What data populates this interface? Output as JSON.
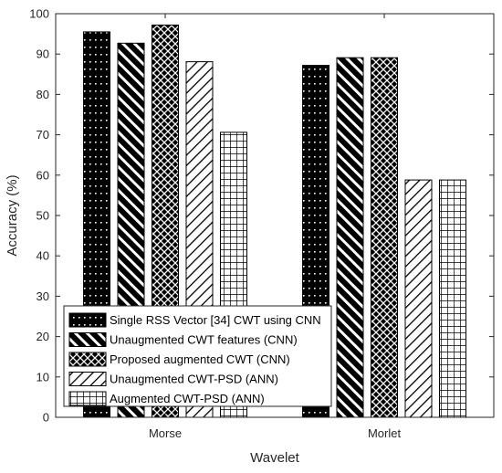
{
  "chart_data": {
    "type": "bar",
    "title": "",
    "xlabel": "Wavelet",
    "ylabel": "Accuracy (%)",
    "ylim": [
      0,
      100
    ],
    "yticks": [
      0,
      10,
      20,
      30,
      40,
      50,
      60,
      70,
      80,
      90,
      100
    ],
    "categories": [
      "Morse",
      "Morlet"
    ],
    "grid": false,
    "legend_position": "bottom-left",
    "series": [
      {
        "name": "Single RSS Vector [34] CWT using CNN",
        "values": [
          95.5,
          87.2
        ],
        "pattern": "black-dots"
      },
      {
        "name": "Unaugmented CWT features (CNN)",
        "values": [
          92.7,
          89.1
        ],
        "pattern": "dense-backslash"
      },
      {
        "name": "Proposed augmented CWT (CNN)",
        "values": [
          97.2,
          89.1
        ],
        "pattern": "crosshatch"
      },
      {
        "name": "Unaugmented CWT-PSD (ANN)",
        "values": [
          88.1,
          58.8
        ],
        "pattern": "slash"
      },
      {
        "name": "Augmented CWT-PSD (ANN)",
        "values": [
          70.6,
          58.8
        ],
        "pattern": "grid"
      }
    ]
  }
}
